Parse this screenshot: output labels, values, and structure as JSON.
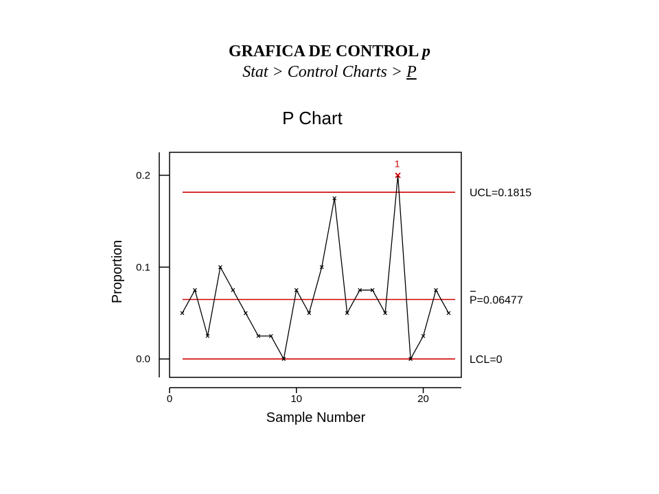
{
  "slide": {
    "title_line1_main": "GRAFICA DE CONTROL ",
    "title_line1_italic": "p",
    "title_line2_prefix": "Stat > Control Charts > ",
    "title_line2_underlined": "P"
  },
  "chart_data": {
    "type": "line",
    "title": "P Chart",
    "xlabel": "Sample Number",
    "ylabel": "Proportion",
    "xlim": [
      0,
      23
    ],
    "ylim": [
      -0.02,
      0.225
    ],
    "xticks": [
      0,
      10,
      20
    ],
    "xtick_labels": [
      "0",
      "10",
      "20"
    ],
    "yticks": [
      0.0,
      0.1,
      0.2
    ],
    "ytick_labels": [
      "0.0",
      "0.1",
      "0.2"
    ],
    "grid": false,
    "series": [
      {
        "x": [
          1,
          2,
          3,
          4,
          5,
          6,
          7,
          8,
          9,
          10,
          11,
          12,
          13,
          14,
          15,
          16,
          17,
          18,
          19,
          20,
          21,
          22
        ],
        "values": [
          0.05,
          0.075,
          0.025,
          0.1,
          0.075,
          0.05,
          0.025,
          0.025,
          0.0,
          0.075,
          0.05,
          0.1,
          0.175,
          0.05,
          0.075,
          0.075,
          0.05,
          0.2,
          0.0,
          0.025,
          0.075,
          0.05
        ],
        "color": "#000000"
      }
    ],
    "control_limits": [
      {
        "value": 0.1815,
        "label": "UCL=0.1815",
        "color": "#d00000"
      },
      {
        "value": 0.06477,
        "label": "P=0.06477",
        "color": "#d00000",
        "overbar": true
      },
      {
        "value": 0.0,
        "label": "LCL=0",
        "color": "#d00000"
      }
    ],
    "out_of_control": [
      {
        "x": 18,
        "y": 0.2,
        "label": "1",
        "color": "#d00000"
      }
    ]
  }
}
